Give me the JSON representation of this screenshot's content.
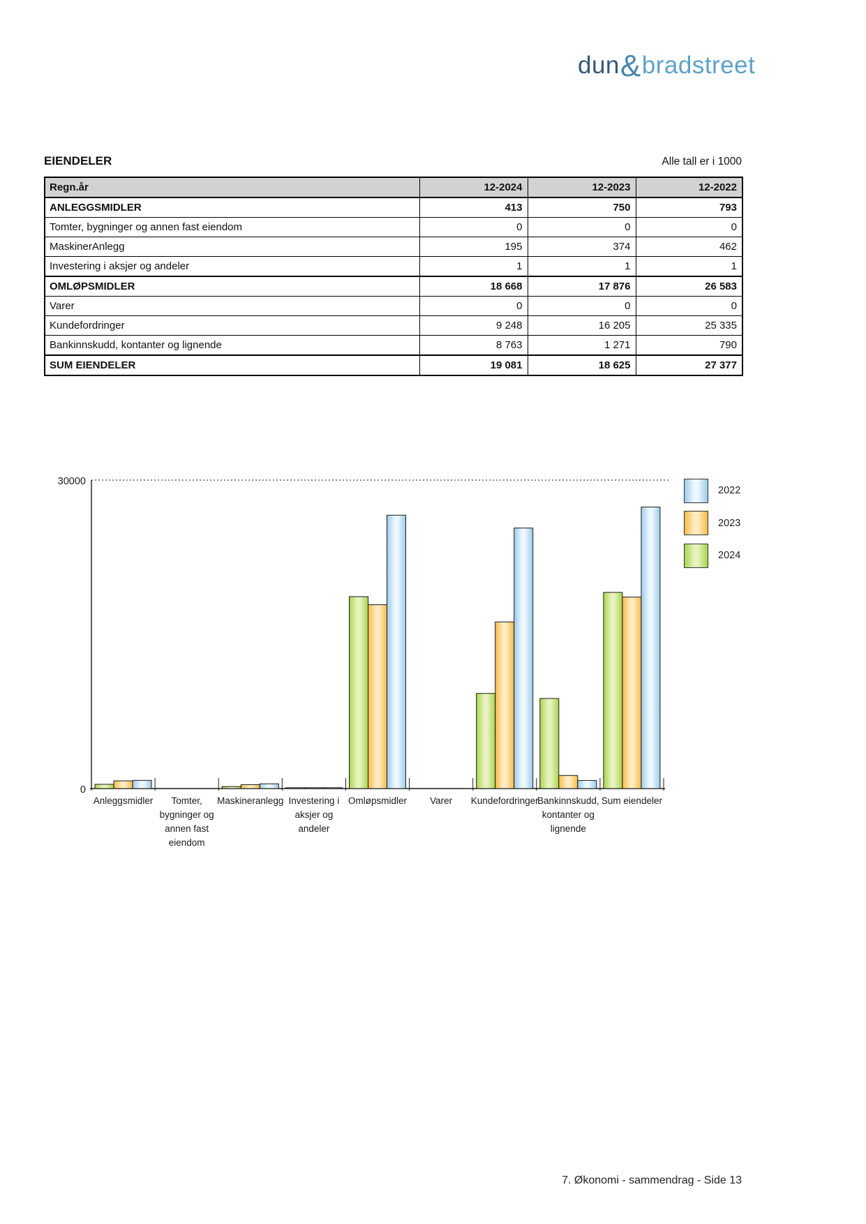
{
  "logo": {
    "dun": "dun",
    "amp": "&",
    "bradstreet": "bradstreet"
  },
  "section": {
    "title": "EIENDELER",
    "note": "Alle tall er i 1000"
  },
  "table": {
    "header": [
      "Regn.år",
      "12-2024",
      "12-2023",
      "12-2022"
    ],
    "rows": [
      {
        "label": "ANLEGGSMIDLER",
        "values": [
          "413",
          "750",
          "793"
        ],
        "bold": true
      },
      {
        "label": "Tomter, bygninger og annen fast eiendom",
        "values": [
          "0",
          "0",
          "0"
        ],
        "bold": false
      },
      {
        "label": "MaskinerAnlegg",
        "values": [
          "195",
          "374",
          "462"
        ],
        "bold": false
      },
      {
        "label": "Investering i aksjer og andeler",
        "values": [
          "1",
          "1",
          "1"
        ],
        "bold": false
      },
      {
        "label": "OMLØPSMIDLER",
        "values": [
          "18 668",
          "17 876",
          "26 583"
        ],
        "bold": true
      },
      {
        "label": "Varer",
        "values": [
          "0",
          "0",
          "0"
        ],
        "bold": false
      },
      {
        "label": "Kundefordringer",
        "values": [
          "9 248",
          "16 205",
          "25 335"
        ],
        "bold": false
      },
      {
        "label": "Bankinnskudd, kontanter og lignende",
        "values": [
          "8 763",
          "1 271",
          "790"
        ],
        "bold": false
      },
      {
        "label": "SUM EIENDELER",
        "values": [
          "19 081",
          "18 625",
          "27 377"
        ],
        "bold": true
      }
    ]
  },
  "chart_data": {
    "type": "bar",
    "categories": [
      "Anleggsmidler",
      "Tomter, bygninger og annen fast eiendom",
      "Maskineranlegg",
      "Investering i aksjer og andeler",
      "Omløpsmidler",
      "Varer",
      "Kundefordringer",
      "Bankinnskudd, kontanter og lignende",
      "Sum eiendeler"
    ],
    "label_lines": [
      [
        "Anleggsmidler"
      ],
      [
        "Tomter,",
        "bygninger og",
        "annen fast",
        "eiendom"
      ],
      [
        "Maskineranlegg"
      ],
      [
        "Investering i",
        "aksjer og",
        "andeler"
      ],
      [
        "Omløpsmidler"
      ],
      [
        "Varer"
      ],
      [
        "Kundefordringer"
      ],
      [
        "Bankinnskudd,",
        "kontanter og",
        "lignende"
      ],
      [
        "Sum eiendeler"
      ]
    ],
    "series": [
      {
        "name": "2022",
        "color_edge": "#9ccbeb",
        "color_center": "#edf7fd",
        "values": [
          793,
          0,
          462,
          1,
          26583,
          0,
          25335,
          790,
          27377
        ]
      },
      {
        "name": "2023",
        "color_edge": "#f7bc45",
        "color_center": "#fdebc2",
        "values": [
          750,
          0,
          374,
          1,
          17876,
          0,
          16205,
          1271,
          18625
        ]
      },
      {
        "name": "2024",
        "color_edge": "#a9d44b",
        "color_center": "#e6f3c0",
        "values": [
          413,
          0,
          195,
          1,
          18668,
          0,
          9248,
          8763,
          19081
        ]
      }
    ],
    "bar_order": [
      "2024",
      "2023",
      "2022"
    ],
    "ylim": [
      0,
      30000
    ],
    "ytick_labels": [
      "30000",
      "0"
    ],
    "grid": "dotted horizontal line at 30000",
    "legend_position": "right-top",
    "title": "",
    "xlabel": "",
    "ylabel": ""
  },
  "footer": {
    "text": "7. Økonomi - sammendrag - Side 13"
  }
}
